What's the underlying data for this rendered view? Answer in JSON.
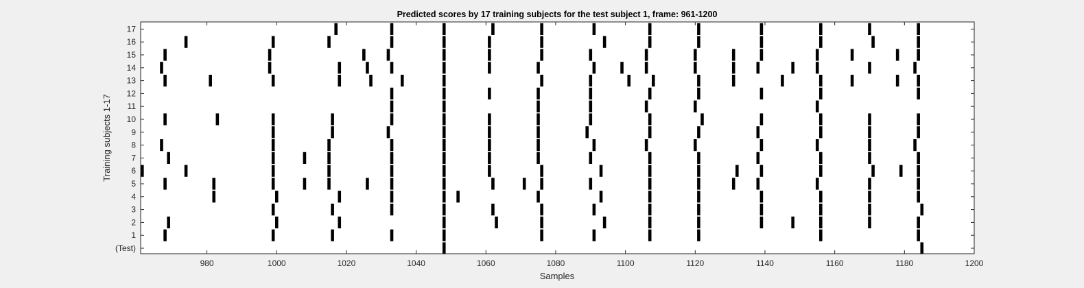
{
  "chart_data": {
    "type": "scatter",
    "marker": "vertical-bar",
    "title": "Predicted scores by 17 training subjects for the test subject 1, frame: 961-1200",
    "xlabel": "Samples",
    "ylabel": "Training subjects 1-17",
    "xlim": [
      961,
      1200
    ],
    "xticks": [
      980,
      1000,
      1020,
      1040,
      1060,
      1080,
      1100,
      1120,
      1140,
      1160,
      1180,
      1200
    ],
    "yticks": [
      0,
      1,
      2,
      3,
      4,
      5,
      6,
      7,
      8,
      9,
      10,
      11,
      12,
      13,
      14,
      15,
      16,
      17
    ],
    "ytick_labels": [
      "(Test)",
      "1",
      "2",
      "3",
      "4",
      "5",
      "6",
      "7",
      "8",
      "9",
      "10",
      "11",
      "12",
      "13",
      "14",
      "15",
      "16",
      "17"
    ],
    "mark_color": "#000000",
    "rows": [
      {
        "subject": "(Test)",
        "x": [
          1048,
          1185
        ]
      },
      {
        "subject": "1",
        "x": [
          968,
          999,
          1016,
          1033,
          1048,
          1076,
          1091,
          1107,
          1121,
          1156,
          1184
        ]
      },
      {
        "subject": "2",
        "x": [
          969,
          1000,
          1018,
          1048,
          1063,
          1076,
          1094,
          1107,
          1121,
          1139,
          1148,
          1156,
          1170,
          1184
        ]
      },
      {
        "subject": "3",
        "x": [
          999,
          1016,
          1033,
          1048,
          1062,
          1076,
          1091,
          1107,
          1121,
          1139,
          1156,
          1170,
          1185
        ]
      },
      {
        "subject": "4",
        "x": [
          982,
          1000,
          1018,
          1033,
          1048,
          1052,
          1075,
          1093,
          1107,
          1121,
          1139,
          1156,
          1170,
          1184
        ]
      },
      {
        "subject": "5",
        "x": [
          968,
          982,
          999,
          1008,
          1015,
          1026,
          1033,
          1048,
          1062,
          1071,
          1076,
          1090,
          1107,
          1121,
          1131,
          1138,
          1155,
          1170,
          1184
        ]
      },
      {
        "subject": "6",
        "x": [
          961,
          974,
          999,
          1015,
          1033,
          1048,
          1061,
          1076,
          1093,
          1107,
          1121,
          1132,
          1139,
          1156,
          1171,
          1179,
          1184
        ]
      },
      {
        "subject": "7",
        "x": [
          969,
          999,
          1008,
          1015,
          1033,
          1048,
          1061,
          1075,
          1090,
          1107,
          1121,
          1138,
          1156,
          1170,
          1184
        ]
      },
      {
        "subject": "8",
        "x": [
          967,
          999,
          1015,
          1033,
          1048,
          1061,
          1075,
          1091,
          1106,
          1120,
          1139,
          1155,
          1170,
          1183
        ]
      },
      {
        "subject": "9",
        "x": [
          999,
          1016,
          1032,
          1048,
          1061,
          1075,
          1089,
          1107,
          1121,
          1138,
          1156,
          1170,
          1184
        ]
      },
      {
        "subject": "10",
        "x": [
          968,
          983,
          999,
          1016,
          1033,
          1048,
          1061,
          1075,
          1090,
          1107,
          1122,
          1139,
          1156,
          1170,
          1184
        ]
      },
      {
        "subject": "11",
        "x": [
          1033,
          1048,
          1075,
          1090,
          1106,
          1120,
          1155
        ]
      },
      {
        "subject": "12",
        "x": [
          1033,
          1048,
          1061,
          1075,
          1090,
          1107,
          1121,
          1139,
          1156,
          1184
        ]
      },
      {
        "subject": "13",
        "x": [
          968,
          981,
          999,
          1018,
          1027,
          1036,
          1048,
          1076,
          1090,
          1101,
          1108,
          1121,
          1131,
          1145,
          1156,
          1165,
          1178,
          1184
        ]
      },
      {
        "subject": "14",
        "x": [
          967,
          998,
          1018,
          1026,
          1033,
          1048,
          1061,
          1075,
          1091,
          1099,
          1106,
          1120,
          1131,
          1138,
          1148,
          1155,
          1170,
          1183
        ]
      },
      {
        "subject": "15",
        "x": [
          968,
          998,
          1025,
          1032,
          1048,
          1061,
          1076,
          1090,
          1106,
          1120,
          1131,
          1139,
          1155,
          1165,
          1178,
          1184
        ]
      },
      {
        "subject": "16",
        "x": [
          974,
          999,
          1015,
          1033,
          1048,
          1061,
          1076,
          1094,
          1107,
          1121,
          1139,
          1156,
          1171,
          1184
        ]
      },
      {
        "subject": "17",
        "x": [
          1017,
          1033,
          1048,
          1062,
          1076,
          1091,
          1107,
          1121,
          1139,
          1156,
          1170,
          1184
        ]
      }
    ]
  }
}
